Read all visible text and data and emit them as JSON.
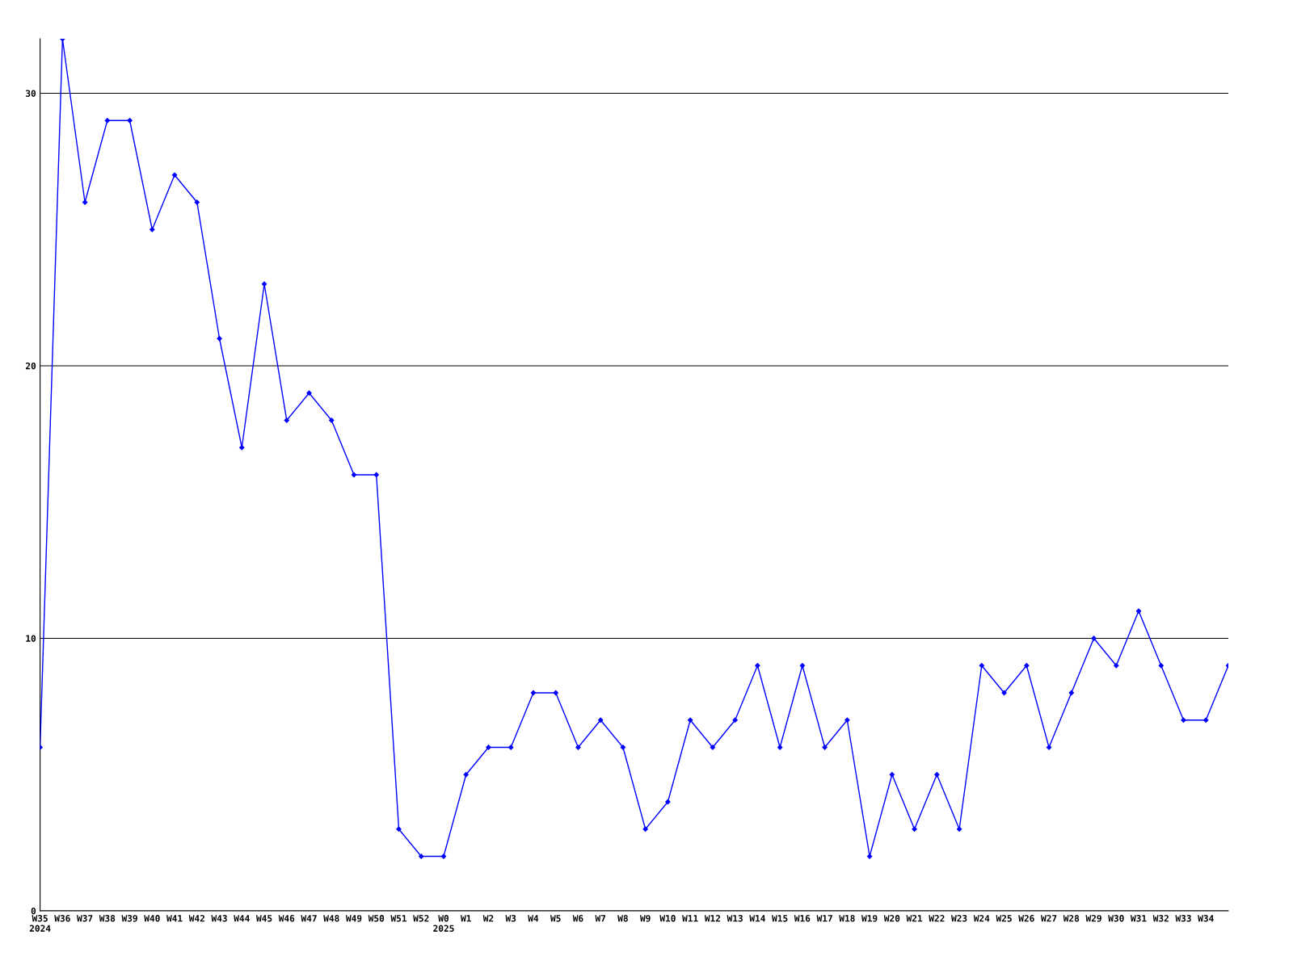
{
  "chart_data": {
    "type": "line",
    "categories": [
      "W35\n2024",
      "W36",
      "W37",
      "W38",
      "W39",
      "W40",
      "W41",
      "W42",
      "W43",
      "W44",
      "W45",
      "W46",
      "W47",
      "W48",
      "W49",
      "W50",
      "W51",
      "W52",
      "W0\n2025",
      "W1",
      "W2",
      "W3",
      "W4",
      "W5",
      "W6",
      "W7",
      "W8",
      "W9",
      "W10",
      "W11",
      "W12",
      "W13",
      "W14",
      "W15",
      "W16",
      "W17",
      "W18",
      "W19",
      "W20",
      "W21",
      "W22",
      "W23",
      "W24",
      "W25",
      "W26",
      "W27",
      "W28",
      "W29",
      "W30",
      "W31",
      "W32",
      "W33",
      "W34",
      null
    ],
    "series": [
      {
        "color": "#0000ff",
        "values": [
          6,
          32,
          26,
          29,
          29,
          25,
          27,
          26,
          21,
          17,
          23,
          18,
          19,
          18,
          16,
          16,
          3,
          2,
          2,
          5,
          6,
          6,
          8,
          8,
          6,
          7,
          6,
          3,
          4,
          7,
          6,
          7,
          9,
          6,
          9,
          6,
          7,
          2,
          5,
          3,
          5,
          3,
          9,
          8,
          9,
          6,
          8,
          10,
          9,
          11,
          9,
          7,
          7,
          9
        ]
      }
    ],
    "ylim": [
      0,
      32
    ],
    "yticks": [
      0,
      10,
      20,
      30
    ],
    "grid": "y",
    "marker": "diamond",
    "line_style": "solid"
  }
}
